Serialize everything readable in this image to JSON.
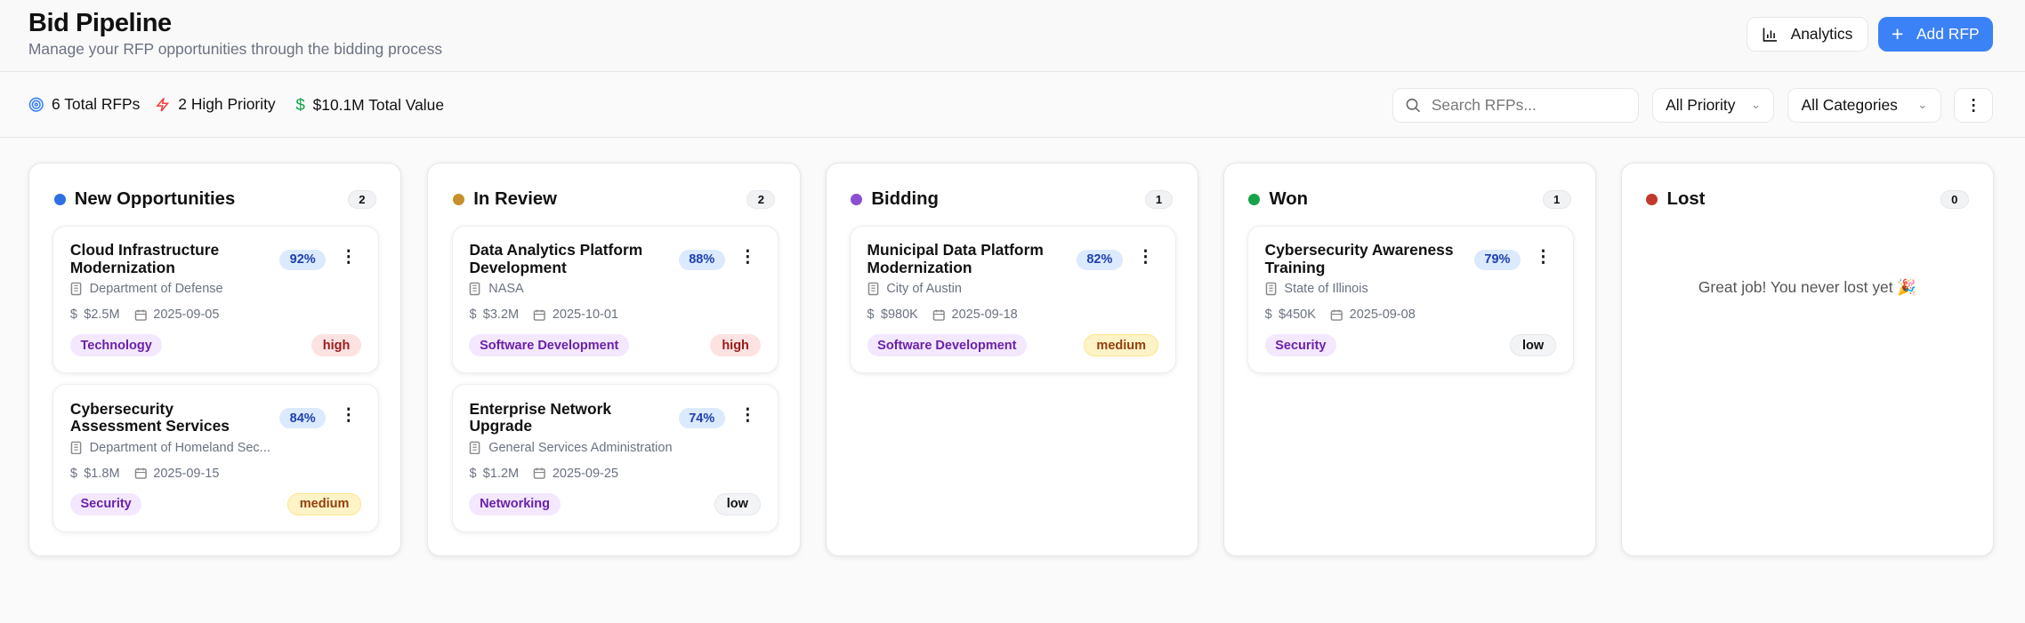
{
  "header": {
    "title": "Bid Pipeline",
    "subtitle": "Manage your RFP opportunities through the bidding process",
    "analytics_label": "Analytics",
    "add_label": "Add RFP",
    "accent": "#3b82f6"
  },
  "stats": [
    {
      "icon": "target-icon",
      "label": "6 Total RFPs",
      "color": "#3b82f6"
    },
    {
      "icon": "zap-icon",
      "label": "2 High Priority",
      "color": "#ef4444"
    },
    {
      "icon": "dollar-icon",
      "label": "$10.1M Total Value",
      "color": "#16a34a"
    }
  ],
  "filters": {
    "search_placeholder": "Search RFPs...",
    "search_value": "",
    "priority": "All Priority",
    "category": "All Categories"
  },
  "columns": [
    {
      "title": "New Opportunities",
      "count": "2",
      "color": "#2f6fe4",
      "cards": [
        {
          "title": "Cloud Infrastructure Modernization",
          "pct": "92%",
          "org": "Department of Defense",
          "value": "$2.5M",
          "date": "2025-09-05",
          "category": "Technology",
          "priority": "high"
        },
        {
          "title": "Cybersecurity Assessment Services",
          "pct": "84%",
          "org": "Department of Homeland Sec...",
          "value": "$1.8M",
          "date": "2025-09-15",
          "category": "Security",
          "priority": "medium"
        }
      ]
    },
    {
      "title": "In Review",
      "count": "2",
      "color": "#c8902a",
      "cards": [
        {
          "title": "Data Analytics Platform Development",
          "pct": "88%",
          "org": "NASA",
          "value": "$3.2M",
          "date": "2025-10-01",
          "category": "Software Development",
          "priority": "high"
        },
        {
          "title": "Enterprise Network Upgrade",
          "pct": "74%",
          "org": "General Services Administration",
          "value": "$1.2M",
          "date": "2025-09-25",
          "category": "Networking",
          "priority": "low"
        }
      ]
    },
    {
      "title": "Bidding",
      "count": "1",
      "color": "#8b4fd1",
      "cards": [
        {
          "title": "Municipal Data Platform Modernization",
          "pct": "82%",
          "org": "City of Austin",
          "value": "$980K",
          "date": "2025-09-18",
          "category": "Software Development",
          "priority": "medium"
        }
      ]
    },
    {
      "title": "Won",
      "count": "1",
      "color": "#16a34a",
      "cards": [
        {
          "title": "Cybersecurity Awareness Training",
          "pct": "79%",
          "org": "State of Illinois",
          "value": "$450K",
          "date": "2025-09-08",
          "category": "Security",
          "priority": "low"
        }
      ]
    },
    {
      "title": "Lost",
      "count": "0",
      "color": "#c0392b",
      "cards": [],
      "empty": "Great job! You never lost yet 🎉"
    }
  ]
}
